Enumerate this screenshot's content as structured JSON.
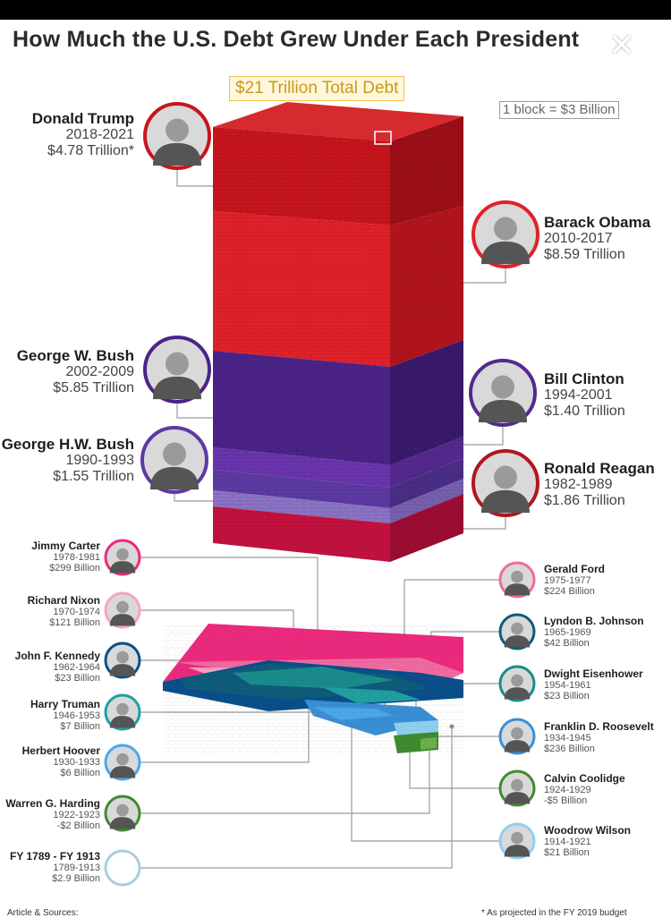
{
  "title": "How Much the U.S. Debt Grew Under Each President",
  "total_label": "$21 Trillion Total Debt",
  "legend_block": "1 block = $3 Billion",
  "footer_left": "Article & Sources:",
  "footer_right": "* As projected in the FY 2019 budget",
  "close_symbol": "✕",
  "chart_data": {
    "type": "stacked-block",
    "title": "How Much the U.S. Debt Grew Under Each President",
    "unit_note": "1 block = $3 Billion",
    "total": "$21 Trillion Total Debt",
    "presidents": [
      {
        "name": "Donald Trump",
        "years": "2018-2021",
        "amount": "$4.78 Trillion*",
        "value_billion": 4780,
        "color": "#c8151d"
      },
      {
        "name": "Barack Obama",
        "years": "2010-2017",
        "amount": "$8.59 Trillion",
        "value_billion": 8590,
        "color": "#e0212a"
      },
      {
        "name": "George W. Bush",
        "years": "2002-2009",
        "amount": "$5.85 Trillion",
        "value_billion": 5850,
        "color": "#4b2388"
      },
      {
        "name": "Bill Clinton",
        "years": "1994-2001",
        "amount": "$1.40 Trillion",
        "value_billion": 1400,
        "color": "#6a35ad"
      },
      {
        "name": "George H.W. Bush",
        "years": "1990-1993",
        "amount": "$1.55 Trillion",
        "value_billion": 1550,
        "color": "#5c3aa3"
      },
      {
        "name": "Ronald Reagan",
        "years": "1982-1989",
        "amount": "$1.86 Trillion",
        "value_billion": 1860,
        "color": "#c4123f"
      },
      {
        "name": "Jimmy Carter",
        "years": "1978-1981",
        "amount": "$299 Billion",
        "value_billion": 299,
        "color": "#ec2a7d"
      },
      {
        "name": "Gerald Ford",
        "years": "1975-1977",
        "amount": "$224 Billion",
        "value_billion": 224,
        "color": "#f06aa2"
      },
      {
        "name": "Richard Nixon",
        "years": "1970-1974",
        "amount": "$121 Billion",
        "value_billion": 121,
        "color": "#f5a3c3"
      },
      {
        "name": "Lyndon B. Johnson",
        "years": "1965-1969",
        "amount": "$42 Billion",
        "value_billion": 42,
        "color": "#0e5c7a"
      },
      {
        "name": "John F. Kennedy",
        "years": "1962-1964",
        "amount": "$23 Billion",
        "value_billion": 23,
        "color": "#0b4f8a"
      },
      {
        "name": "Dwight Eisenhower",
        "years": "1954-1961",
        "amount": "$23 Billion",
        "value_billion": 23,
        "color": "#1a8c8c"
      },
      {
        "name": "Harry Truman",
        "years": "1946-1953",
        "amount": "$7 Billion",
        "value_billion": 7,
        "color": "#20a0a0"
      },
      {
        "name": "Franklin D. Roosevelt",
        "years": "1934-1945",
        "amount": "$236 Billion",
        "value_billion": 236,
        "color": "#3a8fd6"
      },
      {
        "name": "Herbert Hoover",
        "years": "1930-1933",
        "amount": "$6 Billion",
        "value_billion": 6,
        "color": "#4aa8e8"
      },
      {
        "name": "Calvin Coolidge",
        "years": "1924-1929",
        "amount": "-$5 Billion",
        "value_billion": -5,
        "color": "#3f8b2f"
      },
      {
        "name": "Warren G. Harding",
        "years": "1922-1923",
        "amount": "-$2 Billion",
        "value_billion": -2,
        "color": "#4f9a3a"
      },
      {
        "name": "Woodrow Wilson",
        "years": "1914-1921",
        "amount": "$21 Billion",
        "value_billion": 21,
        "color": "#8fd0f0"
      },
      {
        "name": "FY 1789 - FY 1913",
        "years": "1789-1913",
        "amount": "$2.9 Billion",
        "value_billion": 2.9,
        "color": "#cfe7f2"
      }
    ]
  }
}
